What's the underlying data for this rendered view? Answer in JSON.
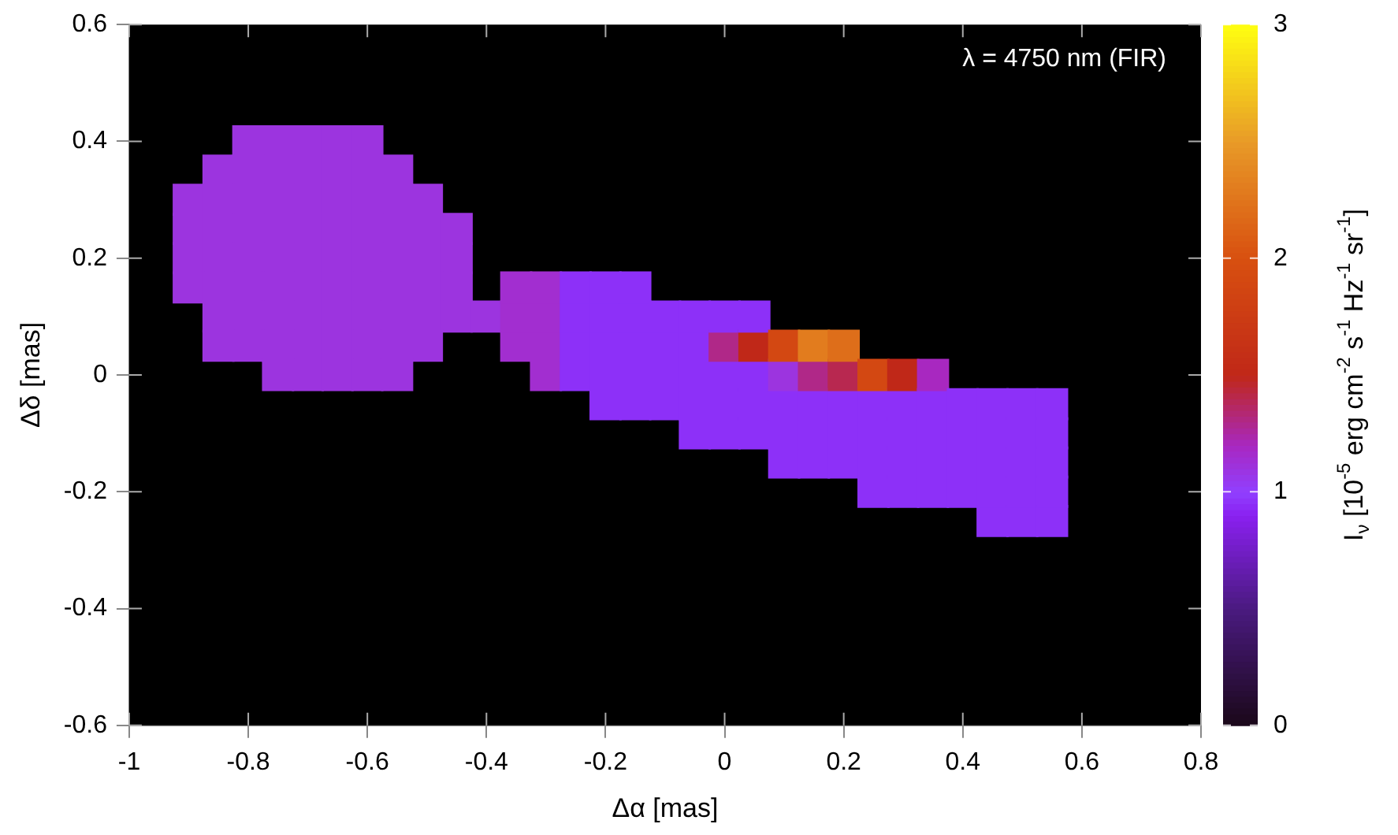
{
  "chart_data": {
    "type": "scatter",
    "marker": "square",
    "annotations": [
      "λ = 4750 nm (FIR)"
    ],
    "xlabel": "Δα [mas]",
    "ylabel": "Δδ [mas]",
    "clabel": "I$_{ν}$ [10$^{-5}$ erg cm$^{-2}$ s$^{-1}$ Hz$^{-1}$ sr$^{-1}$]",
    "xlim": [
      -1,
      0.8
    ],
    "xticks": [
      -1,
      -0.8,
      -0.6,
      -0.4,
      -0.2,
      0,
      0.2,
      0.4,
      0.6,
      0.8
    ],
    "ylim": [
      -0.6,
      0.6
    ],
    "yticks": [
      -0.6,
      -0.4,
      -0.2,
      0,
      0.2,
      0.4,
      0.6
    ],
    "clim": [
      0,
      3
    ],
    "cticks": [
      0,
      1,
      2,
      3
    ],
    "x": [
      -0.8,
      -0.75,
      -0.7,
      -0.65,
      -0.6,
      -0.85,
      -0.8,
      -0.75,
      -0.7,
      -0.65,
      -0.6,
      -0.55,
      -0.9,
      -0.85,
      -0.8,
      -0.75,
      -0.7,
      -0.65,
      -0.6,
      -0.55,
      -0.5,
      -0.9,
      -0.85,
      -0.8,
      -0.75,
      -0.7,
      -0.65,
      -0.6,
      -0.55,
      -0.5,
      -0.45,
      -0.9,
      -0.85,
      -0.8,
      -0.75,
      -0.7,
      -0.65,
      -0.6,
      -0.55,
      -0.5,
      -0.45,
      -0.9,
      -0.85,
      -0.8,
      -0.75,
      -0.7,
      -0.65,
      -0.6,
      -0.55,
      -0.5,
      -0.45,
      -0.85,
      -0.8,
      -0.75,
      -0.7,
      -0.65,
      -0.6,
      -0.55,
      -0.5,
      -0.45,
      -0.4,
      -0.85,
      -0.8,
      -0.75,
      -0.7,
      -0.65,
      -0.6,
      -0.55,
      -0.5,
      -0.75,
      -0.7,
      -0.65,
      -0.6,
      -0.55,
      -0.35,
      -0.35,
      -0.35,
      -0.3,
      -0.3,
      -0.3,
      -0.3,
      -0.25,
      -0.25,
      -0.25,
      -0.25,
      -0.2,
      -0.2,
      -0.2,
      -0.2,
      -0.2,
      -0.15,
      -0.15,
      -0.15,
      -0.15,
      -0.15,
      -0.1,
      -0.1,
      -0.1,
      -0.1,
      -0.05,
      -0.05,
      -0.05,
      -0.05,
      -0.05,
      0,
      0,
      0,
      0,
      0,
      0.05,
      0.05,
      0.05,
      0.05,
      0.05,
      0.1,
      0.1,
      0.1,
      0.1,
      0.1,
      0.15,
      0.15,
      0.15,
      0.15,
      0.15,
      0.2,
      0.2,
      0.2,
      0.2,
      0.2,
      0.25,
      0.25,
      0.25,
      0.25,
      0.25,
      0.3,
      0.3,
      0.3,
      0.3,
      0.3,
      0.35,
      0.35,
      0.35,
      0.35,
      0.35,
      0.4,
      0.4,
      0.4,
      0.4,
      0.45,
      0.45,
      0.45,
      0.45,
      0.45,
      0.5,
      0.5,
      0.5,
      0.5,
      0.5,
      0.55,
      0.55,
      0.55,
      0.55,
      0.55
    ],
    "values": [
      0.4,
      0.4,
      0.4,
      0.4,
      0.4,
      0.35,
      0.35,
      0.35,
      0.35,
      0.35,
      0.35,
      0.35,
      0.3,
      0.3,
      0.3,
      0.3,
      0.3,
      0.3,
      0.3,
      0.3,
      0.3,
      0.25,
      0.25,
      0.25,
      0.25,
      0.25,
      0.25,
      0.25,
      0.25,
      0.25,
      0.25,
      0.2,
      0.2,
      0.2,
      0.2,
      0.2,
      0.2,
      0.2,
      0.2,
      0.2,
      0.2,
      0.15,
      0.15,
      0.15,
      0.15,
      0.15,
      0.15,
      0.15,
      0.15,
      0.15,
      0.15,
      0.1,
      0.1,
      0.1,
      0.1,
      0.1,
      0.1,
      0.1,
      0.1,
      0.1,
      0.1,
      0.05,
      0.05,
      0.05,
      0.05,
      0.05,
      0.05,
      0.05,
      0.05,
      0,
      0,
      0,
      0,
      0,
      0.05,
      0.1,
      0.15,
      0,
      0.05,
      0.1,
      0.15,
      0,
      0.05,
      0.1,
      0.15,
      -0.05,
      0,
      0.05,
      0.1,
      0.15,
      -0.05,
      0,
      0.05,
      0.1,
      0.15,
      -0.05,
      0,
      0.05,
      0.1,
      -0.1,
      -0.05,
      0,
      0.05,
      0.1,
      -0.1,
      -0.05,
      0,
      0.05,
      0.1,
      -0.1,
      -0.05,
      0,
      0.05,
      0.1,
      -0.15,
      -0.1,
      -0.05,
      0,
      0.05,
      -0.15,
      -0.1,
      -0.05,
      0,
      0.05,
      -0.15,
      -0.1,
      -0.05,
      0,
      0.05,
      -0.2,
      -0.15,
      -0.1,
      -0.05,
      0,
      -0.2,
      -0.15,
      -0.1,
      -0.05,
      0,
      -0.2,
      -0.15,
      -0.1,
      -0.05,
      0,
      -0.2,
      -0.15,
      -0.1,
      -0.05,
      -0.25,
      -0.2,
      -0.15,
      -0.1,
      -0.05,
      -0.25,
      -0.2,
      -0.15,
      -0.1,
      -0.05,
      -0.25,
      -0.2,
      -0.15,
      -0.1,
      -0.05
    ],
    "cvalues": [
      1.1,
      1.1,
      1.1,
      1.1,
      1.1,
      1.1,
      1.1,
      1.1,
      1.1,
      1.1,
      1.1,
      1.1,
      1.1,
      1.1,
      1.1,
      1.1,
      1.1,
      1.1,
      1.1,
      1.1,
      1.1,
      1.1,
      1.1,
      1.1,
      1.1,
      1.1,
      1.1,
      1.1,
      1.1,
      1.1,
      1.1,
      1.1,
      1.1,
      1.1,
      1.1,
      1.1,
      1.1,
      1.1,
      1.1,
      1.1,
      1.1,
      1.1,
      1.1,
      1.1,
      1.1,
      1.1,
      1.1,
      1.1,
      1.1,
      1.1,
      1.1,
      1.1,
      1.1,
      1.1,
      1.1,
      1.1,
      1.1,
      1.1,
      1.1,
      1.1,
      1.1,
      1.1,
      1.1,
      1.1,
      1.1,
      1.1,
      1.1,
      1.1,
      1.1,
      1.1,
      1.1,
      1.1,
      1.1,
      1.1,
      1.15,
      1.15,
      1.15,
      1.15,
      1.15,
      1.15,
      1.15,
      0.95,
      0.95,
      0.95,
      0.95,
      0.95,
      0.95,
      0.95,
      0.95,
      0.95,
      0.95,
      0.95,
      0.95,
      0.95,
      0.95,
      0.95,
      0.95,
      0.95,
      0.95,
      0.95,
      0.95,
      0.95,
      0.95,
      0.95,
      0.95,
      0.95,
      0.95,
      1.3,
      0.95,
      0.95,
      0.95,
      0.95,
      1.5,
      0.95,
      0.95,
      0.95,
      0.95,
      1.1,
      1.9,
      0.95,
      0.95,
      0.95,
      1.3,
      2.3,
      0.95,
      0.95,
      0.95,
      1.4,
      2.2,
      0.95,
      0.95,
      0.95,
      0.95,
      1.9,
      0.95,
      0.95,
      0.95,
      0.95,
      1.5,
      0.95,
      0.95,
      0.95,
      0.95,
      1.2,
      0.95,
      0.95,
      0.95,
      0.95,
      0.95,
      0.95,
      0.95,
      0.95,
      0.95,
      0.95,
      0.95,
      0.95,
      0.95,
      0.95,
      0.95,
      0.95,
      0.95,
      0.95,
      0.95
    ]
  }
}
